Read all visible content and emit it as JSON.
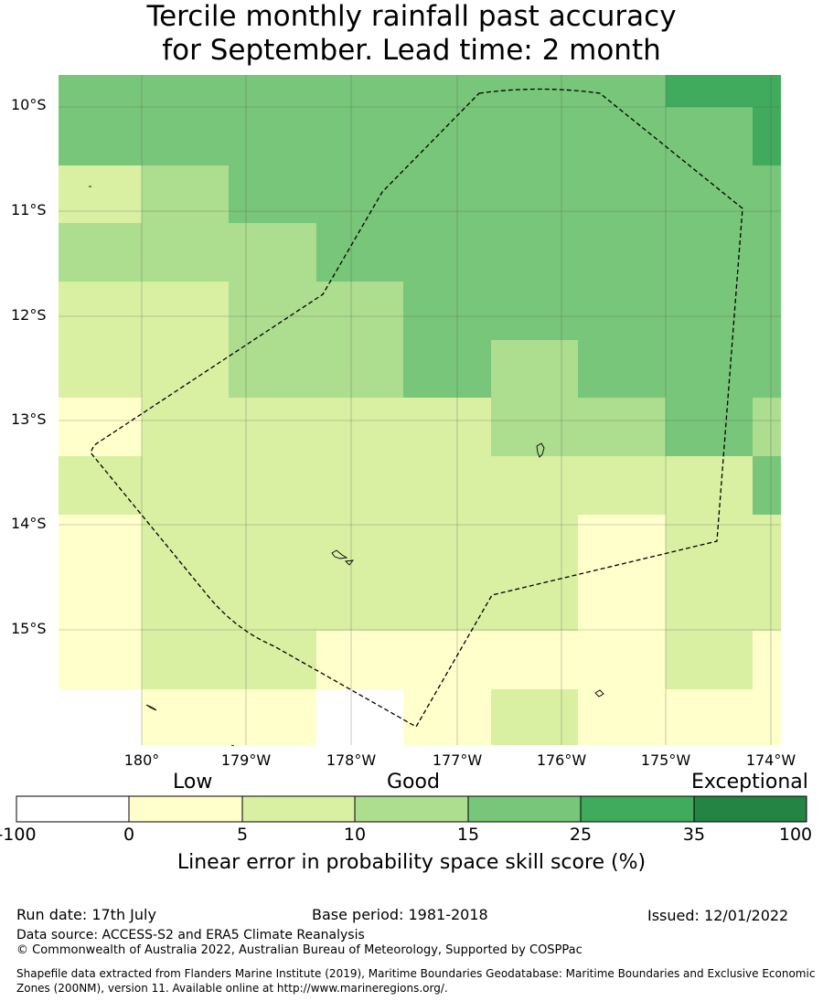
{
  "title": {
    "line1": "Tercile monthly rainfall past accuracy",
    "line2": "for September. Lead time: 2 month"
  },
  "map": {
    "lat_labels": [
      "10°S",
      "11°S",
      "12°S",
      "13°S",
      "14°S",
      "15°S"
    ],
    "lon_labels": [
      "180°",
      "179°W",
      "178°W",
      "177°W",
      "176°W",
      "175°W",
      "174°W"
    ],
    "boundary_style": "dashed black line (EEZ)",
    "grid": true
  },
  "colorbar": {
    "category_words": [
      "Low",
      "Good",
      "Exceptional"
    ],
    "tick_labels": [
      "-100",
      "0",
      "5",
      "10",
      "15",
      "25",
      "35",
      "100"
    ],
    "colors": [
      "#ffffff",
      "#ffffcc",
      "#d9f0a3",
      "#addd8e",
      "#78c679",
      "#41ab5d",
      "#238443"
    ],
    "label": "Linear error in probability space skill score (%)"
  },
  "footer": {
    "run_date": "Run date: 17th July",
    "base_period": "Base period: 1981-2018",
    "issued": "Issued: 12/01/2022",
    "data_source": "Data source: ACCESS-S2 and ERA5 Climate Reanalysis",
    "copyright": "© Commonwealth of Australia 2022, Australian Bureau of Meteorology, Supported by COSPPac",
    "shapefile_line1": "Shapefile data extracted from Flanders Marine Institute (2019), Maritime Boundaries Geodatabase: Maritime Boundaries and Exclusive Economic",
    "shapefile_line2": "Zones (200NM), version 11. Available online at http://www.marineregions.org/."
  }
}
